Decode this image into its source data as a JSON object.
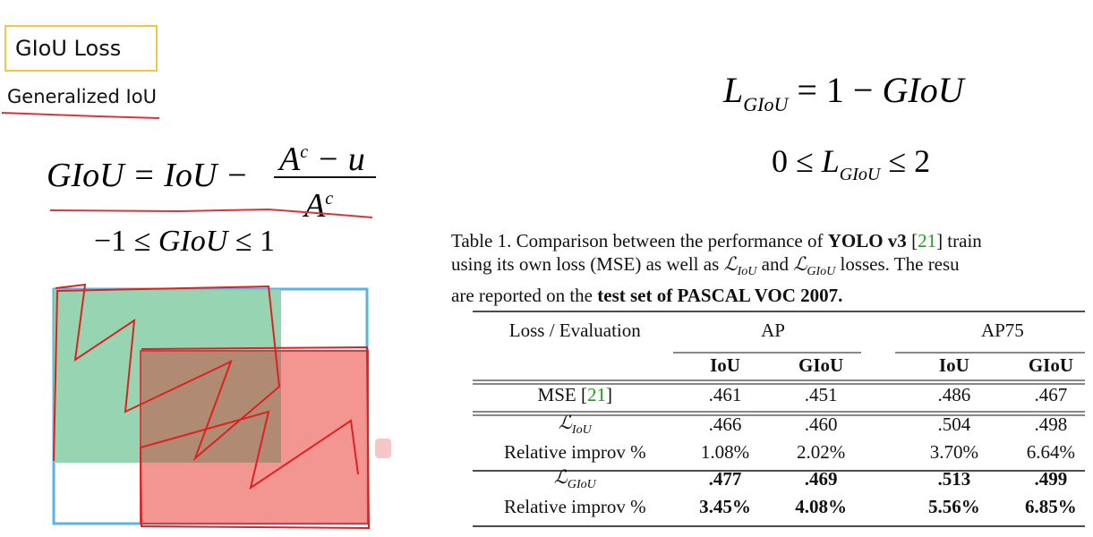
{
  "slide": {
    "title": "GIoU Loss",
    "subtitle": "Generalized IoU"
  },
  "formulas": {
    "giou_lhs": "GIoU = IoU −",
    "giou_numerator": "A^c − u",
    "giou_denominator": "A^c",
    "giou_range": "−1 ≤ GIoU ≤ 1",
    "loss": "L_GIoU = 1 − GIoU",
    "loss_range": "0 ≤ L_GIoU ≤ 2"
  },
  "caption": {
    "line1_a": "Table 1. Comparison between the performance of ",
    "line1_b": "YOLO v3",
    "line1_c": " [",
    "line1_ref": "21",
    "line1_d": "] train",
    "line2_a": "using its own loss (MSE) as well as ",
    "line2_b": " and ",
    "line2_c": " losses. The resu",
    "line3_a": "are reported on the ",
    "line3_b": "test set of PASCAL VOC 2007."
  },
  "table": {
    "header_loss": "Loss / Evaluation",
    "header_ap": "AP",
    "header_ap75": "AP75",
    "sub_headers": [
      "IoU",
      "GIoU",
      "IoU",
      "GIoU"
    ],
    "rows": [
      {
        "label": "MSE [",
        "ref": "21",
        "label_end": "]",
        "values": [
          ".461",
          ".451",
          ".486",
          ".467"
        ]
      },
      {
        "label": "ℒ_IoU",
        "values": [
          ".466",
          ".460",
          ".504",
          ".498"
        ]
      },
      {
        "label": "Relative improv %",
        "values": [
          "1.08%",
          "2.02%",
          "3.70%",
          "6.64%"
        ]
      },
      {
        "label": "ℒ_GIoU",
        "values": [
          ".477",
          ".469",
          ".513",
          ".499"
        ]
      },
      {
        "label": "Relative improv %",
        "values": [
          "3.45%",
          "4.08%",
          "5.56%",
          "6.85%"
        ]
      }
    ]
  },
  "colors": {
    "title_border": "#f2c542",
    "underline": "#e0323a",
    "box_outline": "#5ab4e5",
    "box_green": "#8ccfa8",
    "box_red": "#f28b85",
    "ref_green": "#1aa31a"
  }
}
